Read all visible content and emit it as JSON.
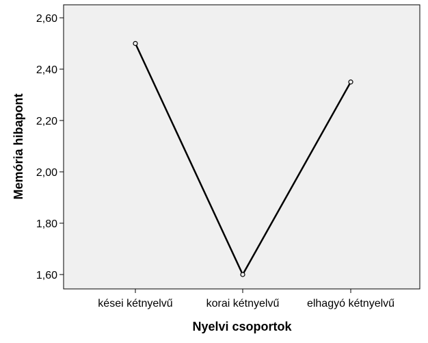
{
  "chart_data": {
    "type": "line",
    "categories": [
      "kései kétnyelvű",
      "korai kétnyelvű",
      "elhagyó kétnyelvű"
    ],
    "series": [
      {
        "values": [
          2.5,
          1.6,
          2.35
        ]
      }
    ],
    "xlabel": "Nyelvi csoportok",
    "ylabel": "Memória hibapont",
    "ylim": [
      1.55,
      2.65
    ],
    "yticks": [
      1.6,
      1.8,
      2.0,
      2.2,
      2.4,
      2.6
    ],
    "ytick_labels": [
      "1,60",
      "1,80",
      "2,00",
      "2,20",
      "2,40",
      "2,60"
    ],
    "grid": false,
    "markers": "open-circle",
    "colors": {
      "plot_background": "#f0f0f0",
      "line": "#000000",
      "axis": "#000000"
    }
  }
}
